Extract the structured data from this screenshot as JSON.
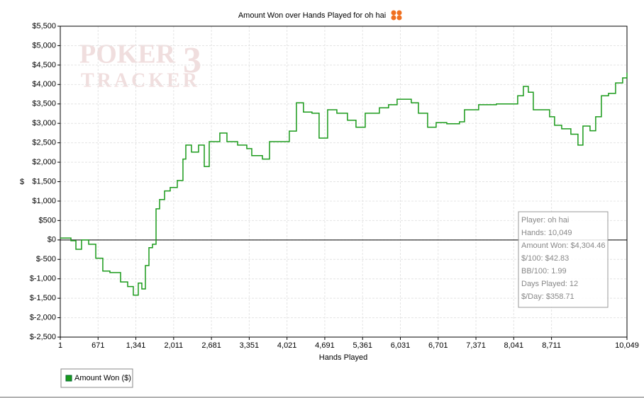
{
  "chart_data": {
    "type": "line",
    "title": "Amount Won over Hands Played for oh hai",
    "x_label": "Hands Played",
    "y_label": "$",
    "watermark": [
      "POKER",
      "TRACKER",
      "3"
    ],
    "xlim": [
      1,
      10049
    ],
    "ylim": [
      -2500,
      5500
    ],
    "xticks": [
      1,
      671,
      {
        "value": 1341,
        "label": "1,341"
      },
      {
        "value": 2011,
        "label": "2,011"
      },
      {
        "value": 2681,
        "label": "2,681"
      },
      {
        "value": 3351,
        "label": "3,351"
      },
      {
        "value": 4021,
        "label": "4,021"
      },
      {
        "value": 4691,
        "label": "4,691"
      },
      {
        "value": 5361,
        "label": "5,361"
      },
      {
        "value": 6031,
        "label": "6,031"
      },
      {
        "value": 6701,
        "label": "6,701"
      },
      {
        "value": 7371,
        "label": "7,371"
      },
      {
        "value": 8041,
        "label": "8,041"
      },
      {
        "value": 8711,
        "label": "8,711"
      },
      {
        "value": 10049,
        "label": "10,049"
      }
    ],
    "yticks": [
      {
        "value": 5500,
        "label": "$5,500"
      },
      {
        "value": 5000,
        "label": "$5,000"
      },
      {
        "value": 4500,
        "label": "$4,500"
      },
      {
        "value": 4000,
        "label": "$4,000"
      },
      {
        "value": 3500,
        "label": "$3,500"
      },
      {
        "value": 3000,
        "label": "$3,000"
      },
      {
        "value": 2500,
        "label": "$2,500"
      },
      {
        "value": 2000,
        "label": "$2,000"
      },
      {
        "value": 1500,
        "label": "$1,500"
      },
      {
        "value": 1000,
        "label": "$1,000"
      },
      {
        "value": 500,
        "label": "$500"
      },
      {
        "value": 0,
        "label": "$0"
      },
      {
        "value": -500,
        "label": "$-500"
      },
      {
        "value": -1000,
        "label": "$-1,000"
      },
      {
        "value": -1500,
        "label": "$-1,500"
      },
      {
        "value": -2000,
        "label": "$-2,000"
      },
      {
        "value": -2500,
        "label": "$-2,500"
      }
    ],
    "grid": true,
    "x": [
      1,
      190,
      278,
      378,
      504,
      630,
      755,
      881,
      1007,
      1070,
      1196,
      1296,
      1384,
      1447,
      1510,
      1573,
      1636,
      1699,
      1762,
      1850,
      1950,
      2076,
      2176,
      2227,
      2327,
      2453,
      2554,
      2642,
      2830,
      2956,
      3145,
      3308,
      3396,
      3585,
      3711,
      3899,
      4062,
      4188,
      4313,
      4464,
      4590,
      4741,
      4905,
      5093,
      5244,
      5408,
      5659,
      5822,
      5973,
      6099,
      6225,
      6351,
      6514,
      6665,
      6854,
      7080,
      7168,
      7419,
      7733,
      7985,
      8111,
      8212,
      8300,
      8388,
      8551,
      8677,
      8765,
      8891,
      9054,
      9180,
      9268,
      9394,
      9494,
      9595,
      9721,
      9847,
      9972,
      10049
    ],
    "series": [
      {
        "name": "Amount Won ($)",
        "color": "#1a9a1a",
        "values": [
          50,
          -20,
          -240,
          0,
          -110,
          -470,
          -800,
          -840,
          -840,
          -1080,
          -1200,
          -1420,
          -1110,
          -1260,
          -660,
          -200,
          -110,
          800,
          1040,
          1260,
          1350,
          1530,
          2080,
          2440,
          2260,
          2440,
          1890,
          2530,
          2750,
          2530,
          2440,
          2350,
          2170,
          2080,
          2530,
          2530,
          2800,
          3530,
          3290,
          3260,
          2620,
          3350,
          3260,
          3080,
          2900,
          3260,
          3400,
          3480,
          3620,
          3620,
          3530,
          3260,
          2900,
          3020,
          2990,
          3040,
          3350,
          3480,
          3500,
          3500,
          3710,
          3950,
          3800,
          3350,
          3350,
          3170,
          2950,
          2860,
          2720,
          2440,
          2930,
          2810,
          3170,
          3710,
          3770,
          4040,
          4170,
          4304.46
        ]
      }
    ],
    "stats": [
      "Player: oh hai",
      "Hands: 10,049",
      "Amount Won: $4,304.46",
      "$/100: $42.83",
      "BB/100: 1.99",
      "Days Played: 12",
      "$/Day: $358.71"
    ]
  }
}
